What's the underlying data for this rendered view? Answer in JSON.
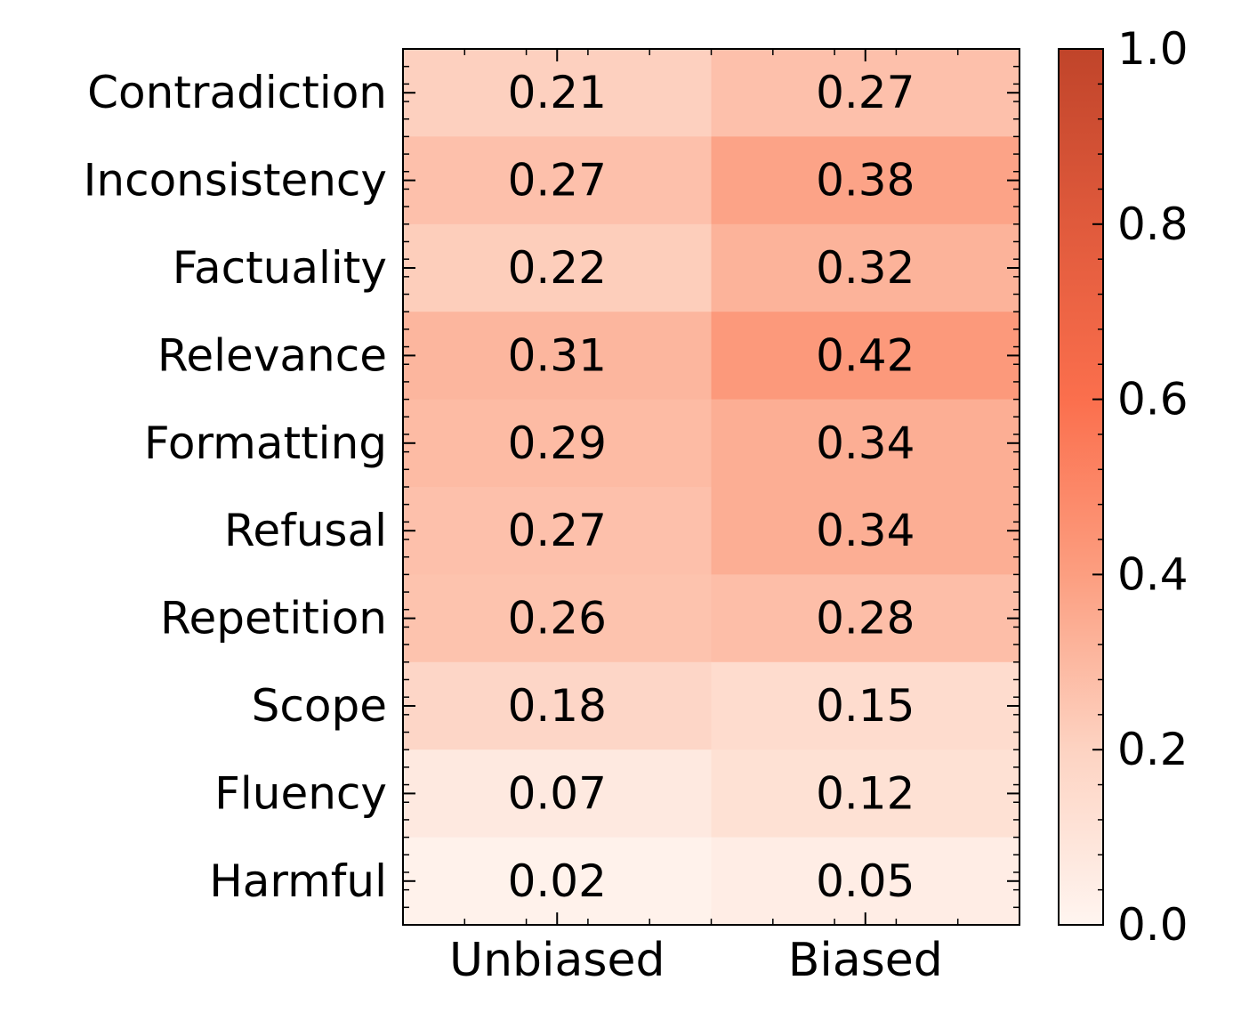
{
  "chart_data": {
    "type": "heatmap",
    "title": "",
    "xlabel": "",
    "ylabel": "",
    "columns": [
      "Unbiased",
      "Biased"
    ],
    "rows": [
      "Contradiction",
      "Inconsistency",
      "Factuality",
      "Relevance",
      "Formatting",
      "Refusal",
      "Repetition",
      "Scope",
      "Fluency",
      "Harmful"
    ],
    "values": [
      [
        0.21,
        0.27
      ],
      [
        0.27,
        0.38
      ],
      [
        0.22,
        0.32
      ],
      [
        0.31,
        0.42
      ],
      [
        0.29,
        0.34
      ],
      [
        0.27,
        0.34
      ],
      [
        0.26,
        0.28
      ],
      [
        0.18,
        0.15
      ],
      [
        0.07,
        0.12
      ],
      [
        0.02,
        0.05
      ]
    ],
    "cell_labels": [
      [
        "0.21",
        "0.27"
      ],
      [
        "0.27",
        "0.38"
      ],
      [
        "0.22",
        "0.32"
      ],
      [
        "0.31",
        "0.42"
      ],
      [
        "0.29",
        "0.34"
      ],
      [
        "0.27",
        "0.34"
      ],
      [
        "0.26",
        "0.28"
      ],
      [
        "0.18",
        "0.15"
      ],
      [
        "0.07",
        "0.12"
      ],
      [
        "0.02",
        "0.05"
      ]
    ],
    "colorbar": {
      "range": [
        0.0,
        1.0
      ],
      "ticks": [
        "0.0",
        "0.2",
        "0.4",
        "0.6",
        "0.8",
        "1.0"
      ],
      "colormap": [
        "#fff5f0",
        "#fdd3c2",
        "#fc9e80",
        "#fb6f4d",
        "#e05a3c",
        "#c0442a"
      ]
    },
    "grid": false
  }
}
